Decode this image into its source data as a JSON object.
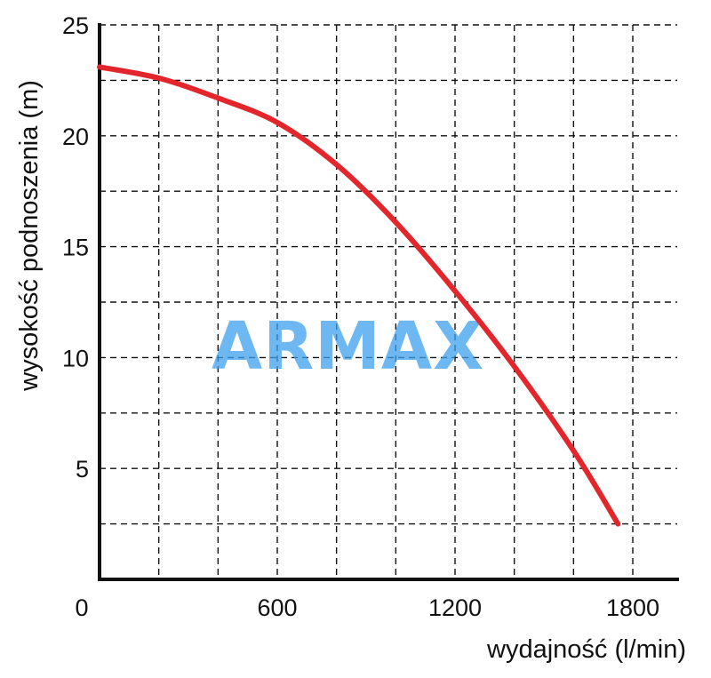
{
  "chart_data": {
    "type": "line",
    "ylabel": "wysokość podnoszenia (m)",
    "xlabel": "wydajność (l/min)",
    "xlim": [
      0,
      1950
    ],
    "ylim": [
      0,
      25
    ],
    "x_ticks": [
      600,
      1200,
      1800
    ],
    "y_ticks": [
      5,
      10,
      15,
      20,
      25
    ],
    "origin_label": "0",
    "x_grid_step": 200,
    "y_grid_step": 2.5,
    "grid": true,
    "series": [
      {
        "color": "#e3262b",
        "x": [
          0,
          200,
          400,
          600,
          800,
          1000,
          1200,
          1400,
          1600,
          1750
        ],
        "y": [
          23.1,
          22.6,
          21.7,
          20.6,
          18.7,
          16.1,
          13.0,
          9.6,
          5.8,
          2.5
        ]
      }
    ],
    "watermark": "ARMAX"
  }
}
